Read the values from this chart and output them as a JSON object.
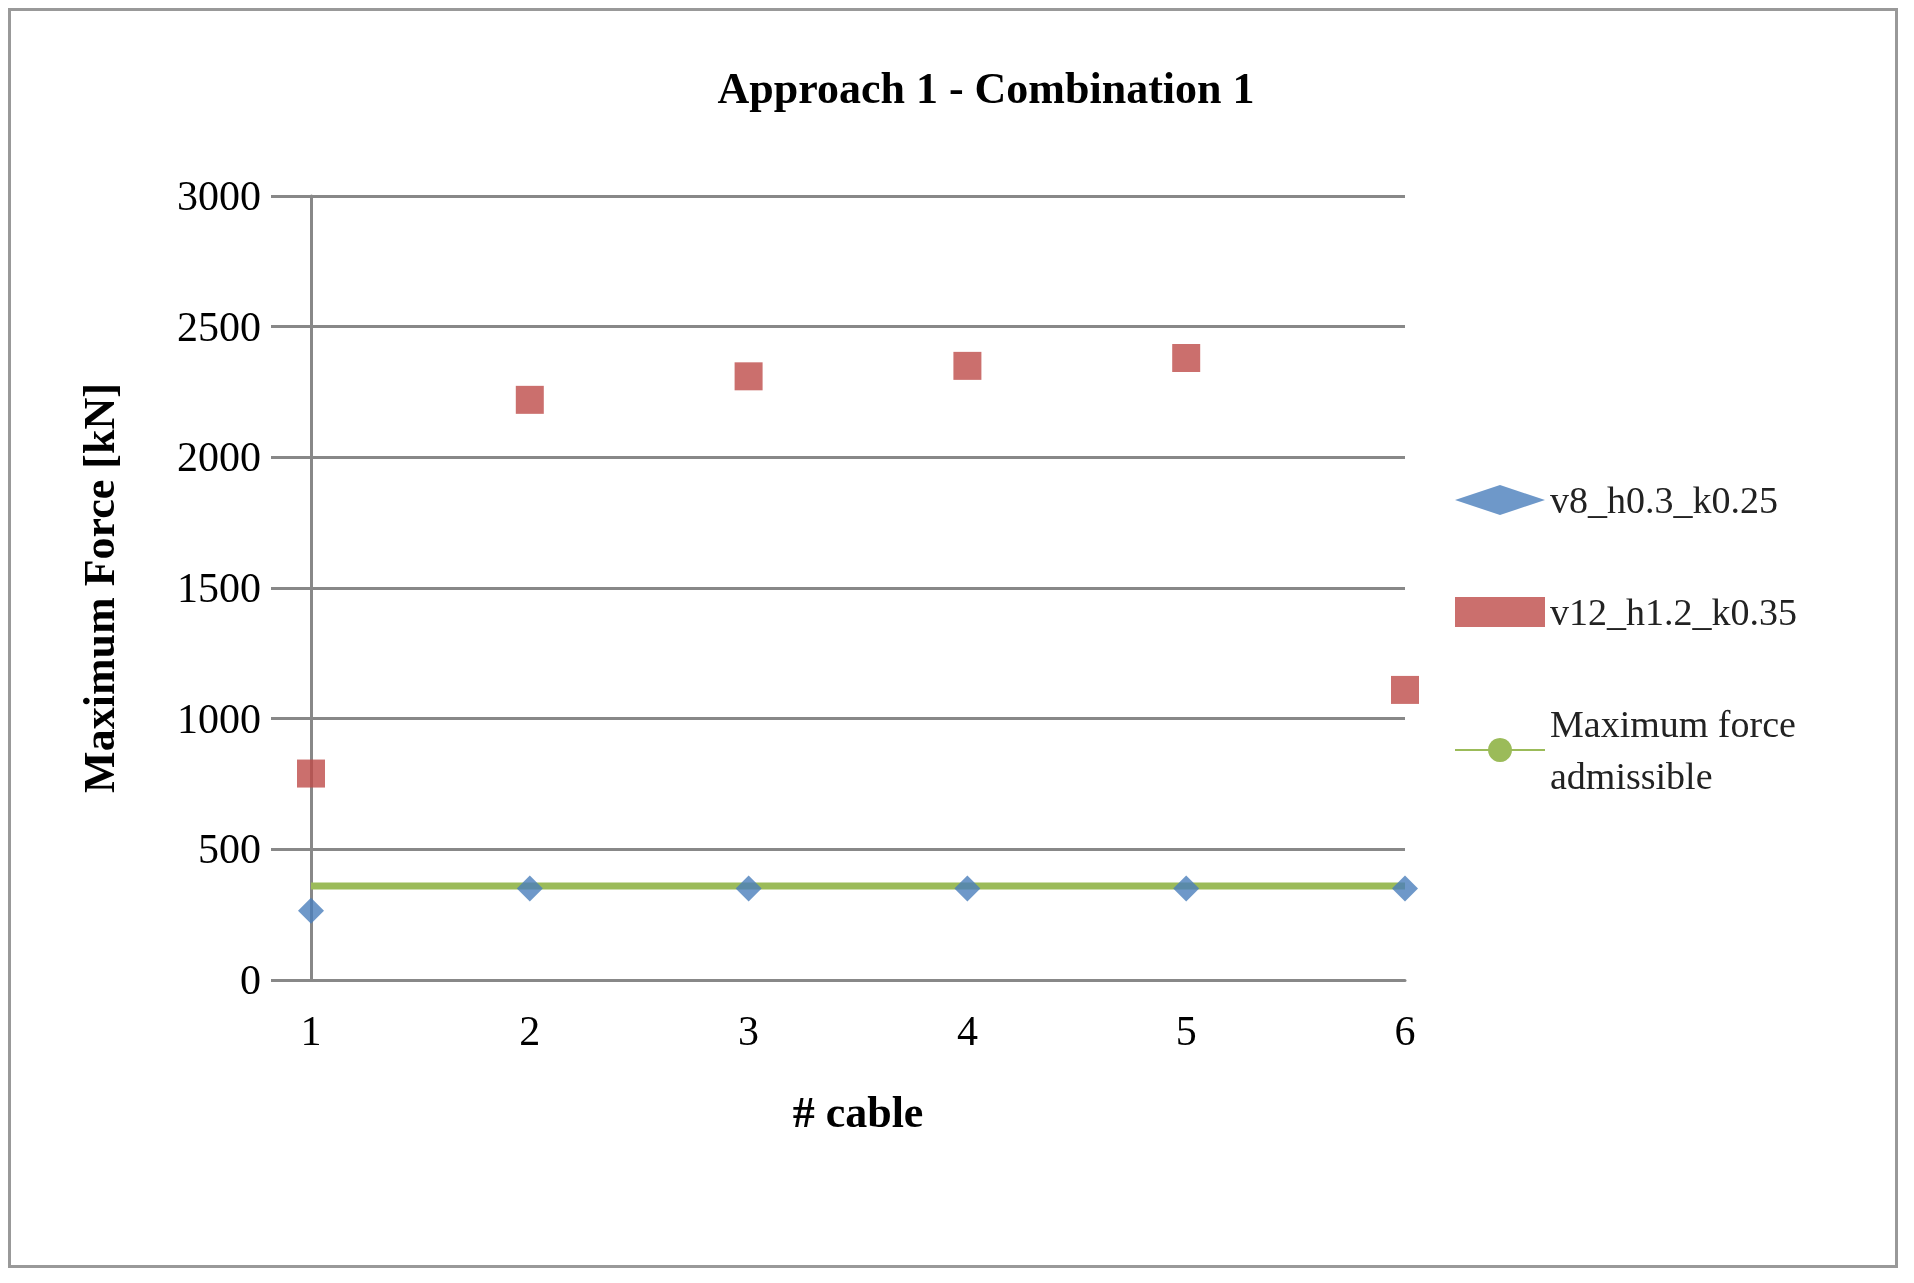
{
  "chart_data": {
    "type": "scatter",
    "title": "Approach 1 - Combination 1",
    "xlabel": "# cable",
    "ylabel": "Maximum Force [kN]",
    "x": [
      1,
      2,
      3,
      4,
      5,
      6
    ],
    "series": [
      {
        "name": "v8_h0.3_k0.25",
        "color": "#4a7ebb",
        "marker": "diamond",
        "values": [
          265,
          350,
          350,
          350,
          350,
          350
        ]
      },
      {
        "name": "v12_h1.2_k0.35",
        "color": "#be4b48",
        "marker": "square",
        "values": [
          790,
          2220,
          2310,
          2350,
          2380,
          1110
        ]
      },
      {
        "name": "Maximum force admissible",
        "type": "line",
        "color": "#9bbb59",
        "marker": "none",
        "values": [
          360,
          360,
          360,
          360,
          360,
          360
        ]
      }
    ],
    "xlim": [
      1,
      6
    ],
    "xticks": [
      1,
      2,
      3,
      4,
      5,
      6
    ],
    "ylim": [
      0,
      3000
    ],
    "yticks": [
      0,
      500,
      1000,
      1500,
      2000,
      2500,
      3000
    ],
    "grid": "y",
    "legend": "right"
  }
}
